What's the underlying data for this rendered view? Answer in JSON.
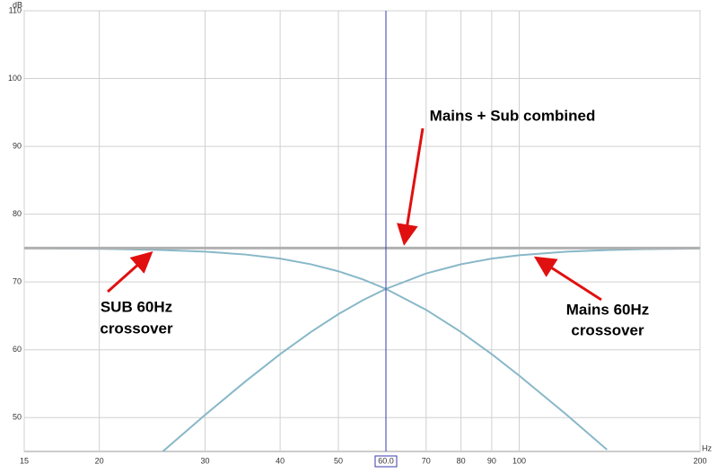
{
  "chart_data": {
    "type": "line",
    "log_x": true,
    "grid": true,
    "y_unit": "dB",
    "x_unit": "Hz",
    "xlim": [
      15,
      200
    ],
    "ylim": [
      45,
      110
    ],
    "xticks": [
      15,
      20,
      30,
      40,
      50,
      70,
      80,
      90,
      100,
      200
    ],
    "yticks": [
      50,
      60,
      70,
      80,
      90,
      100,
      110
    ],
    "x": [
      15,
      20,
      25,
      30,
      35,
      40,
      45,
      50,
      55,
      60,
      70,
      80,
      90,
      100,
      120,
      140,
      160,
      180,
      200
    ],
    "series": [
      {
        "color": "#88b8c8",
        "values": [
          74.97,
          74.89,
          74.74,
          74.47,
          74.05,
          73.44,
          72.61,
          71.58,
          70.36,
          68.98,
          65.89,
          62.62,
          59.35,
          56.19,
          50.39,
          45.27,
          null,
          null,
          null
        ]
      },
      {
        "color": "#88b8c8",
        "values": [
          null,
          null,
          44.33,
          50.39,
          55.32,
          59.35,
          62.62,
          65.25,
          67.34,
          68.98,
          71.25,
          72.61,
          73.44,
          73.94,
          74.47,
          74.71,
          74.83,
          74.89,
          74.93
        ]
      },
      {
        "color": "#b0b0b0",
        "values": [
          75,
          75,
          75,
          75,
          75,
          75,
          75,
          75,
          75,
          75,
          75,
          75,
          75,
          75,
          75,
          75,
          75,
          75,
          75
        ]
      }
    ],
    "cursor": {
      "value": 60,
      "label": "60.0",
      "color": "#3a3ab0"
    },
    "annotations": [
      {
        "lines": [
          "Mains + Sub combined"
        ]
      },
      {
        "lines": [
          "SUB 60Hz",
          "crossover"
        ]
      },
      {
        "lines": [
          "Mains 60Hz",
          "crossover"
        ]
      }
    ]
  }
}
